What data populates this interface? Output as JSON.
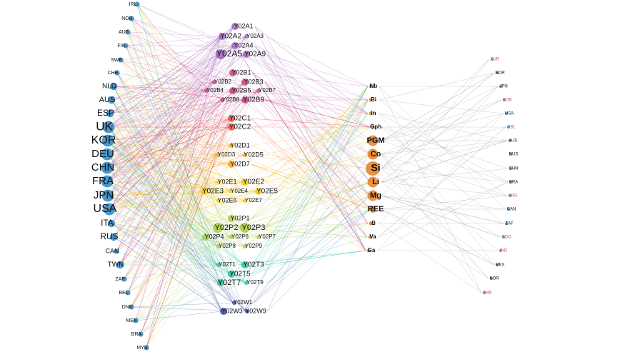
{
  "colors": {
    "country_node": "#2e86c1",
    "cpc_node": "#8e44ad",
    "material_node": "#e67e22",
    "right_node": "#2e86c1",
    "right_edge": "#888888",
    "label": "#111111",
    "label_red": "#d9534f"
  },
  "left_countries": [
    {
      "label": "IRL",
      "weight": 1
    },
    {
      "label": "NOR",
      "weight": 1
    },
    {
      "label": "AUT",
      "weight": 1
    },
    {
      "label": "FIN",
      "weight": 1
    },
    {
      "label": "SWE",
      "weight": 1
    },
    {
      "label": "CHE",
      "weight": 1
    },
    {
      "label": "NLD",
      "weight": 2
    },
    {
      "label": "AUS",
      "weight": 2
    },
    {
      "label": "ESP",
      "weight": 2
    },
    {
      "label": "UK",
      "weight": 4
    },
    {
      "label": "KOR",
      "weight": 4
    },
    {
      "label": "DEU",
      "weight": 4
    },
    {
      "label": "CHN",
      "weight": 4
    },
    {
      "label": "FRA",
      "weight": 4
    },
    {
      "label": "JPN",
      "weight": 4
    },
    {
      "label": "USA",
      "weight": 4
    },
    {
      "label": "ITA",
      "weight": 2
    },
    {
      "label": "RUS",
      "weight": 2
    },
    {
      "label": "CAN",
      "weight": 1
    },
    {
      "label": "TWN",
      "weight": 2
    },
    {
      "label": "ZAF",
      "weight": 1
    },
    {
      "label": "BEL",
      "weight": 1
    },
    {
      "label": "DNK",
      "weight": 1
    },
    {
      "label": "MEX",
      "weight": 1
    },
    {
      "label": "BRA",
      "weight": 1
    },
    {
      "label": "MYS",
      "weight": 1
    }
  ],
  "cpc_codes": [
    {
      "label": "Y02A1",
      "group": "A",
      "weight": 1
    },
    {
      "label": "Y02A2",
      "group": "A",
      "weight": 1
    },
    {
      "label": "Y02A3",
      "group": "A",
      "weight": 0
    },
    {
      "label": "Y02A4",
      "group": "A",
      "weight": 1
    },
    {
      "label": "Y02A5",
      "group": "A",
      "weight": 2
    },
    {
      "label": "Y02A9",
      "group": "A",
      "weight": 1
    },
    {
      "label": "Y02B1",
      "group": "B",
      "weight": 1
    },
    {
      "label": "Y02B2",
      "group": "B",
      "weight": 0
    },
    {
      "label": "Y02B3",
      "group": "B",
      "weight": 1
    },
    {
      "label": "Y02B4",
      "group": "B",
      "weight": 0
    },
    {
      "label": "Y02B5",
      "group": "B",
      "weight": 1
    },
    {
      "label": "Y02B7",
      "group": "B",
      "weight": 0
    },
    {
      "label": "Y02B8",
      "group": "B",
      "weight": 0
    },
    {
      "label": "Y02B9",
      "group": "B",
      "weight": 1
    },
    {
      "label": "Y02C1",
      "group": "C",
      "weight": 1
    },
    {
      "label": "Y02C2",
      "group": "C",
      "weight": 1
    },
    {
      "label": "Y02D1",
      "group": "D",
      "weight": 0
    },
    {
      "label": "Y02D3",
      "group": "D",
      "weight": 0
    },
    {
      "label": "Y02D5",
      "group": "D",
      "weight": 0
    },
    {
      "label": "Y02D7",
      "group": "D",
      "weight": 1
    },
    {
      "label": "Y02E1",
      "group": "E",
      "weight": 0
    },
    {
      "label": "Y02E2",
      "group": "E",
      "weight": 1
    },
    {
      "label": "Y02E3",
      "group": "E",
      "weight": 1
    },
    {
      "label": "Y02E4",
      "group": "E",
      "weight": 0
    },
    {
      "label": "Y02E5",
      "group": "E",
      "weight": 1
    },
    {
      "label": "Y02E6",
      "group": "E",
      "weight": 0
    },
    {
      "label": "Y02E7",
      "group": "E",
      "weight": 0
    },
    {
      "label": "Y02P1",
      "group": "P",
      "weight": 1
    },
    {
      "label": "Y02P2",
      "group": "P",
      "weight": 2
    },
    {
      "label": "Y02P3",
      "group": "P",
      "weight": 2
    },
    {
      "label": "Y02P4",
      "group": "P",
      "weight": 1
    },
    {
      "label": "Y02P6",
      "group": "P",
      "weight": 0
    },
    {
      "label": "Y02P7",
      "group": "P",
      "weight": 0
    },
    {
      "label": "Y02P8",
      "group": "P",
      "weight": 0
    },
    {
      "label": "Y02P9",
      "group": "P",
      "weight": 0
    },
    {
      "label": "Y02T1",
      "group": "T",
      "weight": 0
    },
    {
      "label": "Y02T3",
      "group": "T",
      "weight": 1
    },
    {
      "label": "Y02T5",
      "group": "T",
      "weight": 1
    },
    {
      "label": "Y02T7",
      "group": "T",
      "weight": 1
    },
    {
      "label": "Y02T9",
      "group": "T",
      "weight": 0
    },
    {
      "label": "Y02W1",
      "group": "W",
      "weight": 0
    },
    {
      "label": "Y02W3",
      "group": "W",
      "weight": 1
    },
    {
      "label": "Y02W9",
      "group": "W",
      "weight": 0
    }
  ],
  "group_colors": {
    "A": "#9b59b6",
    "B": "#c0397b",
    "C": "#e74c3c",
    "D": "#f39c12",
    "E": "#f1c40f",
    "P": "#a3c93a",
    "T": "#1abc9c",
    "W": "#2c3e94"
  },
  "materials": [
    {
      "label": "Nb",
      "weight": 0
    },
    {
      "label": "Bi",
      "weight": 0
    },
    {
      "label": "In",
      "weight": 0
    },
    {
      "label": "Gph",
      "weight": 0
    },
    {
      "label": "PGM",
      "weight": 2
    },
    {
      "label": "Co",
      "weight": 2
    },
    {
      "label": "Si",
      "weight": 3
    },
    {
      "label": "Li",
      "weight": 2
    },
    {
      "label": "Mg",
      "weight": 2
    },
    {
      "label": "REE",
      "weight": 1
    },
    {
      "label": "B",
      "weight": 0
    },
    {
      "label": "Va",
      "weight": 0
    },
    {
      "label": "Ga",
      "weight": 0
    }
  ],
  "right_countries": [
    {
      "label": "TUR",
      "red": true
    },
    {
      "label": "NOR",
      "red": false
    },
    {
      "label": "JPN",
      "red": false
    },
    {
      "label": "COB",
      "red": true
    },
    {
      "label": "USA",
      "red": false
    },
    {
      "label": "CBL",
      "red": true
    },
    {
      "label": "AUS",
      "red": false
    },
    {
      "label": "RUS",
      "red": false
    },
    {
      "label": "CHN",
      "red": false
    },
    {
      "label": "BRA",
      "red": false
    },
    {
      "label": "ARG",
      "red": true
    },
    {
      "label": "CAN",
      "red": false
    },
    {
      "label": "ZAF",
      "red": false
    },
    {
      "label": "COD",
      "red": true
    },
    {
      "label": "IND",
      "red": true
    },
    {
      "label": "MEX",
      "red": false
    },
    {
      "label": "KOR",
      "red": false
    },
    {
      "label": "ZMB",
      "red": true
    }
  ]
}
